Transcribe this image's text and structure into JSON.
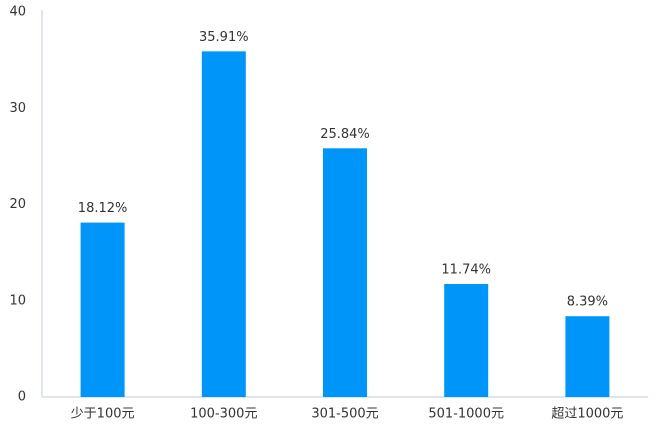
{
  "chart_data": {
    "type": "bar",
    "categories": [
      "少于100元",
      "100-300元",
      "301-500元",
      "501-1000元",
      "超过1000元"
    ],
    "values": [
      18.12,
      35.91,
      25.84,
      11.74,
      8.39
    ],
    "value_labels": [
      "18.12%",
      "35.91%",
      "25.84%",
      "11.74%",
      "8.39%"
    ],
    "color": "#0095f9",
    "ylim": [
      0,
      40
    ],
    "yticks": [
      0,
      10,
      20,
      30,
      40
    ],
    "grid": false
  }
}
